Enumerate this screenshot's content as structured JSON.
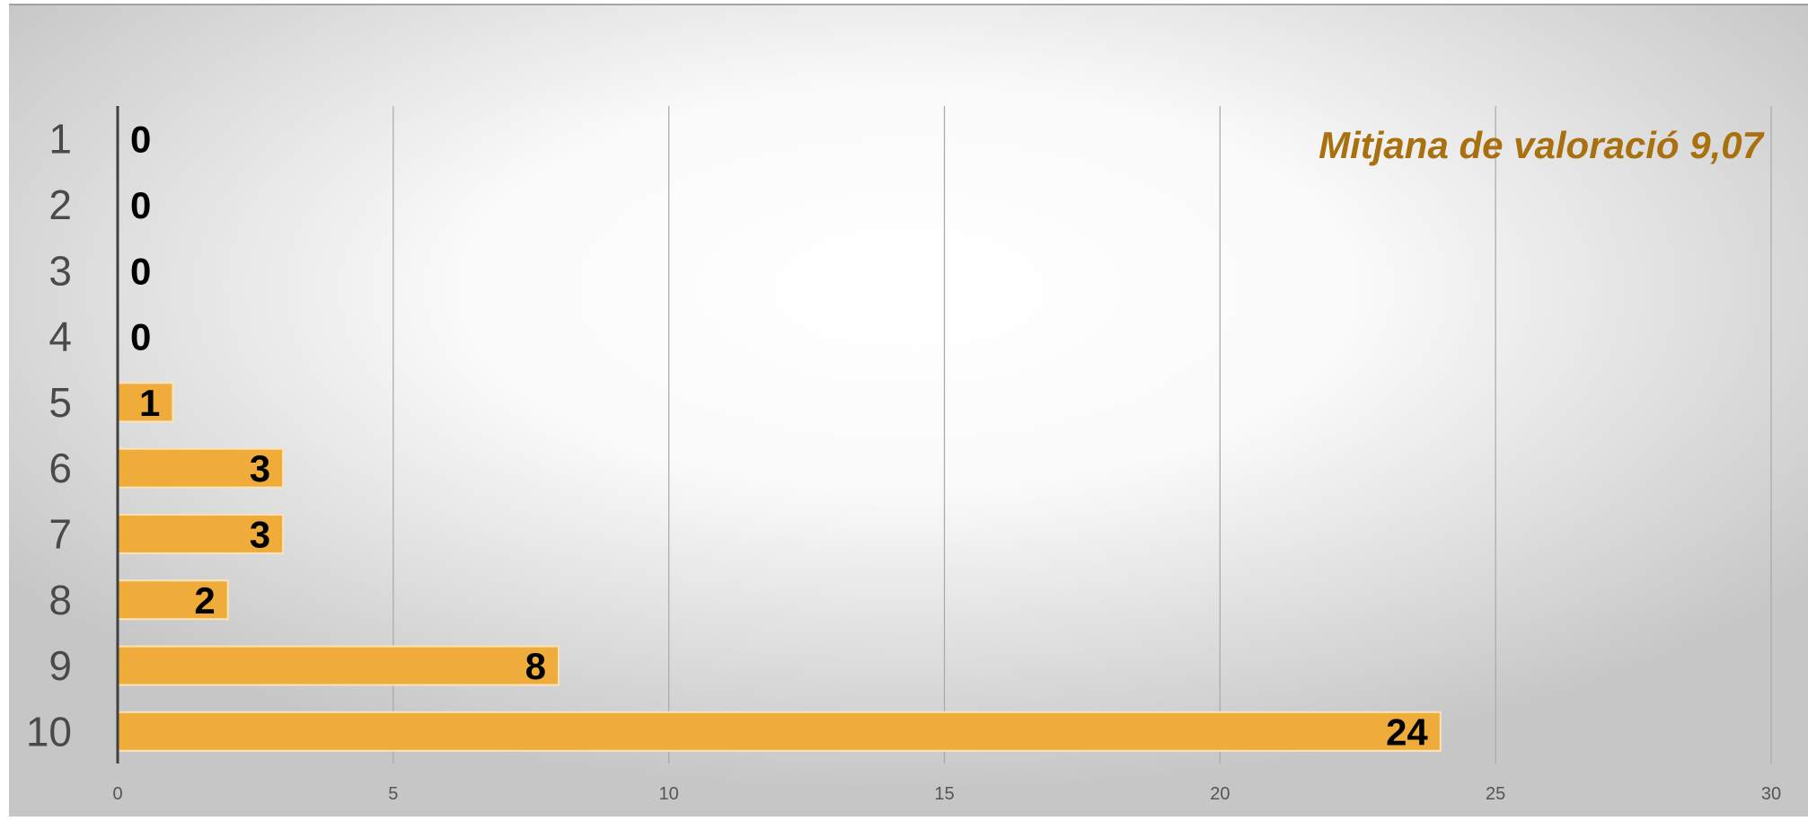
{
  "chart_data": {
    "type": "bar",
    "orientation": "horizontal",
    "categories": [
      "1",
      "2",
      "3",
      "4",
      "5",
      "6",
      "7",
      "8",
      "9",
      "10"
    ],
    "values": [
      0,
      0,
      0,
      0,
      1,
      3,
      3,
      2,
      8,
      24
    ],
    "data_labels": [
      "0",
      "0",
      "0",
      "0",
      "1",
      "3",
      "3",
      "2",
      "8",
      "24"
    ],
    "x_ticks": [
      "0",
      "5",
      "10",
      "15",
      "20",
      "25",
      "30"
    ],
    "xlim": [
      0,
      30
    ],
    "grid": "vertical",
    "legend": "none",
    "annotation": "Mitjana de valoració 9,07",
    "title": "",
    "xlabel": "",
    "ylabel": ""
  },
  "colors": {
    "bar_fill": "#f0ac3b",
    "bar_stroke": "#fbe3b8",
    "annotation": "#a8700f",
    "axis": "#404040",
    "grid": "#a8a8a8",
    "background_center": "#ffffff",
    "background_edge": "#c6c6c6"
  }
}
